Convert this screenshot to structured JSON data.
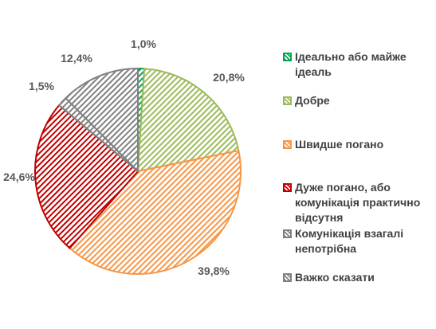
{
  "chart_data": {
    "type": "pie",
    "categories": [
      "Ідеально або майже ідеаль",
      "Добре",
      "Швидше погано",
      "Дуже погано, або комунікація практично відсутня",
      "Комунікація взагалі непотрібна",
      "Важко сказати"
    ],
    "values": [
      1.0,
      20.8,
      39.8,
      24.6,
      1.5,
      12.4
    ],
    "data_labels": [
      "1,0%",
      "20,8%",
      "39,8%",
      "24,6%",
      "1,5%",
      "12,4%"
    ],
    "colors": [
      "#00A651",
      "#9BBB59",
      "#F79646",
      "#C00000",
      "#808080",
      "#808080"
    ],
    "fill_pattern": "diagonal-hatch",
    "start_angle_deg": 0,
    "direction": "clockwise",
    "legend_position": "right"
  },
  "legend": {
    "items": [
      {
        "lines": [
          "Ідеально або майже",
          "ідеаль"
        ]
      },
      {
        "lines": [
          "Добре"
        ]
      },
      {
        "lines": [
          "Швидше погано"
        ]
      },
      {
        "lines": [
          "Дуже погано, або",
          "комунікація практично",
          "відсутня"
        ]
      },
      {
        "lines": [
          "Комунікація взагалі",
          "непотрібна"
        ]
      },
      {
        "lines": [
          "Важко сказати"
        ]
      }
    ]
  }
}
